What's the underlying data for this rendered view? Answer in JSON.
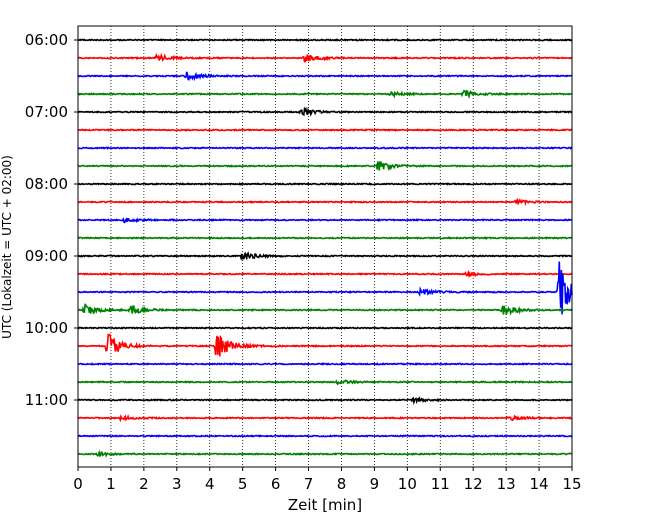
{
  "chart_data": {
    "type": "line",
    "title": "",
    "xlabel": "Zeit  [min]",
    "ylabel": "UTC (Lokalzeit = UTC + 02:00)",
    "xlim": [
      0,
      15
    ],
    "x_ticks": [
      0,
      1,
      2,
      3,
      4,
      5,
      6,
      7,
      8,
      9,
      10,
      11,
      12,
      13,
      14,
      15
    ],
    "x_tick_labels": [
      "0",
      "1",
      "2",
      "3",
      "4",
      "5",
      "6",
      "7",
      "8",
      "9",
      "10",
      "11",
      "12",
      "13",
      "14",
      "15"
    ],
    "y_tick_labels": [
      "06:00",
      "07:00",
      "08:00",
      "09:00",
      "10:00",
      "11:00"
    ],
    "grid": "x",
    "trace_colors": [
      "#000000",
      "#ff0000",
      "#0000ff",
      "#008000"
    ],
    "series": [
      {
        "start": "06:00",
        "events": []
      },
      {
        "start": "06:15",
        "events": [
          {
            "t": 2.4,
            "amp": 0.35
          },
          {
            "t": 6.9,
            "amp": 0.45
          }
        ]
      },
      {
        "start": "06:30",
        "events": [
          {
            "t": 3.3,
            "amp": 0.4
          }
        ]
      },
      {
        "start": "06:45",
        "events": [
          {
            "t": 9.5,
            "amp": 0.2
          },
          {
            "t": 11.7,
            "amp": 0.35
          }
        ]
      },
      {
        "start": "07:00",
        "events": [
          {
            "t": 6.8,
            "amp": 0.4
          }
        ]
      },
      {
        "start": "07:15",
        "events": []
      },
      {
        "start": "07:30",
        "events": []
      },
      {
        "start": "07:45",
        "events": [
          {
            "t": 9.1,
            "amp": 0.5
          }
        ]
      },
      {
        "start": "08:00",
        "events": []
      },
      {
        "start": "08:15",
        "events": [
          {
            "t": 13.3,
            "amp": 0.2
          }
        ]
      },
      {
        "start": "08:30",
        "events": [
          {
            "t": 1.4,
            "amp": 0.2
          }
        ]
      },
      {
        "start": "08:45",
        "events": []
      },
      {
        "start": "09:00",
        "events": [
          {
            "t": 5.0,
            "amp": 0.5
          }
        ]
      },
      {
        "start": "09:15",
        "events": [
          {
            "t": 11.8,
            "amp": 0.2
          }
        ]
      },
      {
        "start": "09:30",
        "events": [
          {
            "t": 10.4,
            "amp": 0.3
          },
          {
            "t": 14.6,
            "amp": 3.5
          }
        ]
      },
      {
        "start": "09:45",
        "events": [
          {
            "t": 0.2,
            "amp": 0.55
          },
          {
            "t": 1.6,
            "amp": 0.5
          },
          {
            "t": 12.9,
            "amp": 0.6
          }
        ]
      },
      {
        "start": "10:00",
        "events": []
      },
      {
        "start": "10:15",
        "events": [
          {
            "t": 0.9,
            "amp": 1.3
          },
          {
            "t": 4.2,
            "amp": 1.4
          }
        ]
      },
      {
        "start": "10:30",
        "events": []
      },
      {
        "start": "10:45",
        "events": [
          {
            "t": 7.9,
            "amp": 0.2
          }
        ]
      },
      {
        "start": "11:00",
        "events": [
          {
            "t": 10.2,
            "amp": 0.2
          }
        ]
      },
      {
        "start": "11:15",
        "events": [
          {
            "t": 1.3,
            "amp": 0.2
          },
          {
            "t": 13.1,
            "amp": 0.25
          }
        ]
      },
      {
        "start": "11:30",
        "events": []
      },
      {
        "start": "11:45",
        "events": [
          {
            "t": 0.6,
            "amp": 0.2
          }
        ]
      }
    ]
  }
}
